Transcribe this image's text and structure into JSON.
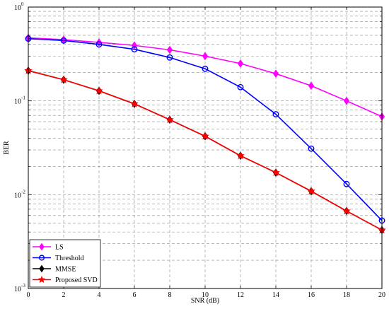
{
  "chart_data": {
    "type": "line",
    "title": "",
    "xlabel": "SNR (dB)",
    "ylabel": "BER",
    "xlim": [
      0,
      20
    ],
    "ylim": [
      0.001,
      1
    ],
    "yscale": "log",
    "grid": true,
    "legend_position": "bottom-left",
    "x": [
      0,
      2,
      4,
      6,
      8,
      10,
      12,
      14,
      16,
      18,
      20
    ],
    "x_ticks": [
      "0",
      "2",
      "4",
      "6",
      "8",
      "10",
      "12",
      "14",
      "16",
      "18",
      "20"
    ],
    "y_ticks": [
      {
        "base": "10",
        "exp": "0"
      },
      {
        "base": "10",
        "exp": "-1"
      },
      {
        "base": "10",
        "exp": "-2"
      },
      {
        "base": "10",
        "exp": "-3"
      }
    ],
    "series": [
      {
        "name": "LS",
        "color": "#ff00ff",
        "marker": "diamond",
        "values": [
          0.47,
          0.45,
          0.42,
          0.39,
          0.35,
          0.3,
          0.25,
          0.195,
          0.145,
          0.1,
          0.068
        ]
      },
      {
        "name": "Threshold",
        "color": "#0000ff",
        "marker": "circle",
        "values": [
          0.46,
          0.44,
          0.4,
          0.355,
          0.29,
          0.22,
          0.14,
          0.072,
          0.031,
          0.013,
          0.0053
        ]
      },
      {
        "name": "MMSE",
        "color": "#000000",
        "marker": "diamond",
        "values": [
          0.21,
          0.168,
          0.128,
          0.093,
          0.063,
          0.042,
          0.026,
          0.0172,
          0.0109,
          0.0067,
          0.0042
        ]
      },
      {
        "name": "Proposed SVD",
        "color": "#ff0000",
        "marker": "star",
        "values": [
          0.21,
          0.168,
          0.128,
          0.093,
          0.063,
          0.042,
          0.026,
          0.0172,
          0.0109,
          0.0067,
          0.0042
        ]
      }
    ]
  }
}
